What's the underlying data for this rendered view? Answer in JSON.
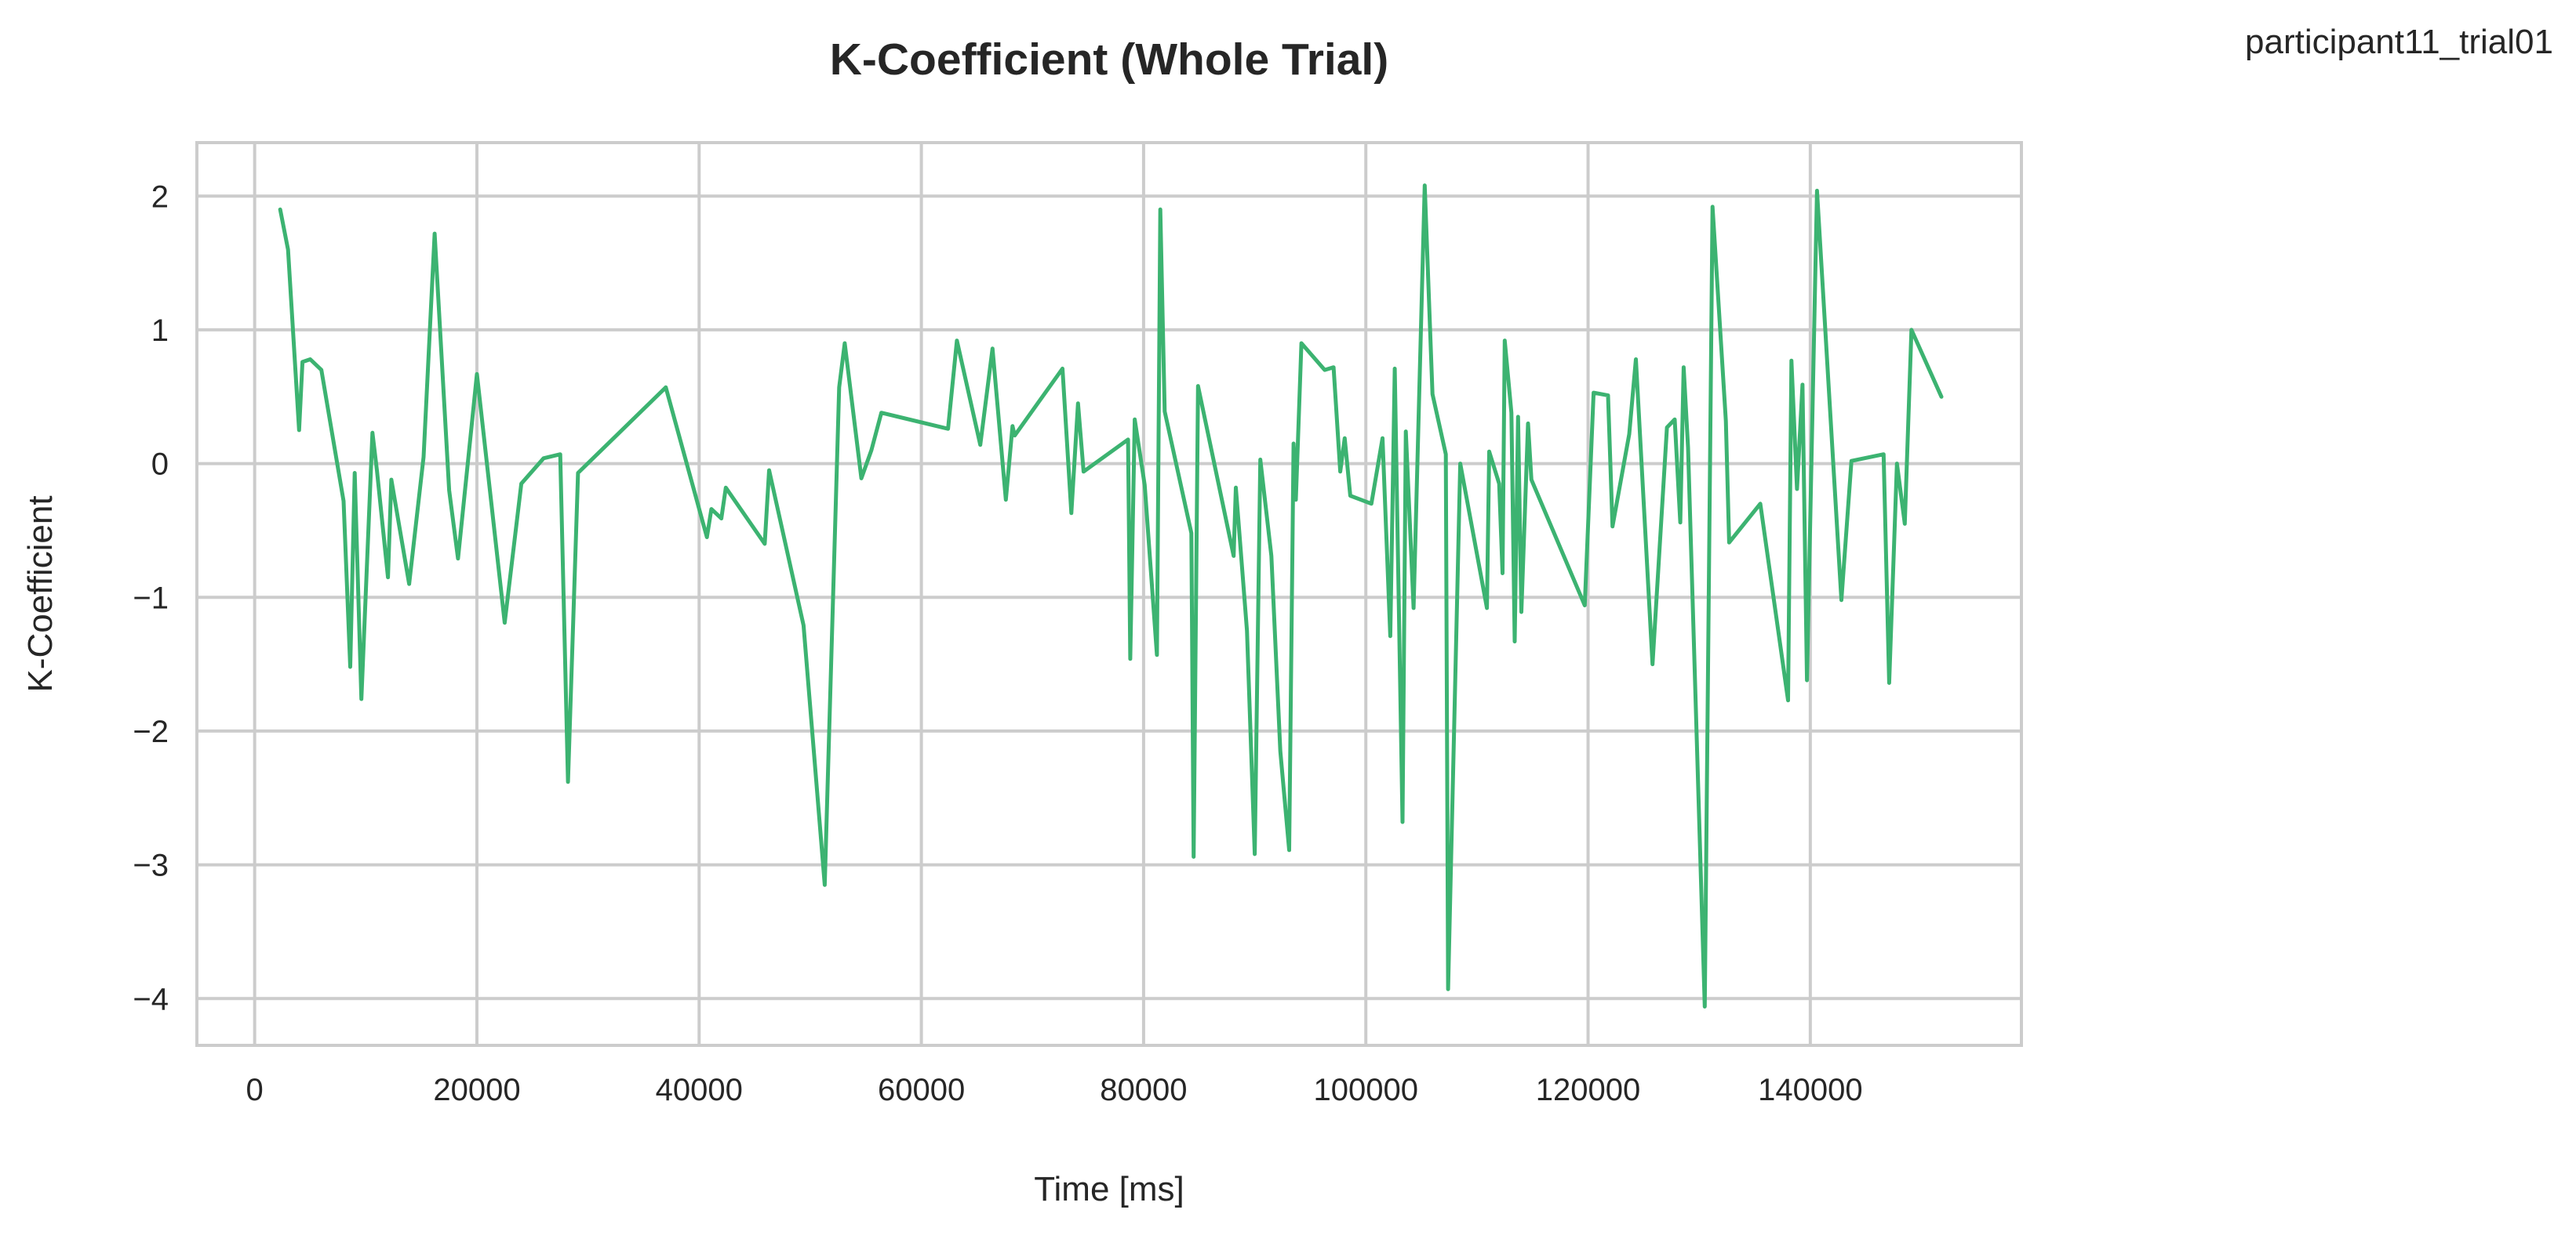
{
  "corner_label": "participant11_trial01",
  "colors": {
    "series": "#3cb371",
    "grid": "#cccccc",
    "text": "#262626"
  },
  "chart_data": {
    "type": "line",
    "title": "K-Coefficient (Whole Trial)",
    "xlabel": "Time [ms]",
    "ylabel": "K-Coefficient",
    "xlim": [
      -5200,
      159000
    ],
    "ylim": [
      -4.35,
      2.4
    ],
    "grid": true,
    "xticks": [
      0,
      20000,
      40000,
      60000,
      80000,
      100000,
      120000,
      140000
    ],
    "xtick_labels": [
      "0",
      "20000",
      "40000",
      "60000",
      "80000",
      "100000",
      "120000",
      "140000"
    ],
    "yticks": [
      2,
      1,
      0,
      -1,
      -2,
      -3,
      -4
    ],
    "ytick_labels": [
      "2",
      "1",
      "0",
      "−1",
      "−2",
      "−3",
      "−4"
    ],
    "series": [
      {
        "x": [
          2300,
          3000,
          4000,
          4300,
          5000,
          6000,
          8000,
          8600,
          9000,
          9600,
          10600,
          11000,
          12000,
          12300,
          13900,
          15200,
          16200,
          17500,
          18300,
          20000,
          22500,
          24000,
          26000,
          27500,
          28200,
          29100,
          37000,
          40700,
          41100,
          42000,
          42400,
          45900,
          46300,
          49400,
          51300,
          52600,
          53100,
          54600,
          55500,
          56400,
          62400,
          63200,
          65300,
          66400,
          67600,
          68200,
          68400,
          72700,
          73500,
          74100,
          74600,
          78600,
          78800,
          79200,
          80100,
          81200,
          81500,
          81900,
          84300,
          84500,
          84900,
          88100,
          88300,
          89300,
          90000,
          90500,
          91500,
          92300,
          93100,
          93500,
          93700,
          94200,
          96300,
          97100,
          97700,
          98100,
          98600,
          100500,
          101500,
          102200,
          102600,
          103300,
          103600,
          104300,
          105300,
          106000,
          107200,
          107400,
          108500,
          110900,
          111100,
          112000,
          112300,
          112500,
          113100,
          113400,
          113700,
          114000,
          114600,
          114900,
          119700,
          120500,
          121800,
          122200,
          123700,
          124300,
          125800,
          127100,
          127800,
          128300,
          128600,
          129000,
          130500,
          131200,
          132400,
          132700,
          135500,
          138000,
          138300,
          138800,
          139300,
          139700,
          140600,
          142800,
          143700,
          146600,
          147100,
          147800,
          148500,
          149100,
          151800
        ],
        "y": [
          1.9,
          1.6,
          0.25,
          0.76,
          0.78,
          0.7,
          -0.28,
          -1.52,
          -0.07,
          -1.76,
          0.23,
          -0.05,
          -0.85,
          -0.12,
          -0.9,
          0.05,
          1.72,
          -0.2,
          -0.71,
          0.67,
          -1.19,
          -0.15,
          0.04,
          0.07,
          -2.38,
          -0.07,
          0.57,
          -0.55,
          -0.34,
          -0.41,
          -0.18,
          -0.6,
          -0.05,
          -1.21,
          -3.15,
          0.57,
          0.9,
          -0.11,
          0.1,
          0.38,
          0.26,
          0.92,
          0.14,
          0.86,
          -0.27,
          0.28,
          0.21,
          0.71,
          -0.37,
          0.45,
          -0.06,
          0.18,
          -1.46,
          0.33,
          -0.16,
          -1.43,
          1.9,
          0.39,
          -0.52,
          -2.94,
          0.58,
          -0.69,
          -0.18,
          -1.25,
          -2.92,
          0.03,
          -0.69,
          -2.15,
          -2.89,
          0.15,
          -0.27,
          0.9,
          0.7,
          0.72,
          -0.06,
          0.19,
          -0.24,
          -0.3,
          0.19,
          -1.29,
          0.71,
          -2.68,
          0.24,
          -1.08,
          2.08,
          0.52,
          0.07,
          -3.93,
          0.0,
          -1.08,
          0.09,
          -0.15,
          -0.82,
          0.92,
          0.38,
          -1.33,
          0.35,
          -1.11,
          0.3,
          -0.12,
          -1.06,
          0.53,
          0.51,
          -0.47,
          0.22,
          0.78,
          -1.5,
          0.27,
          0.33,
          -0.44,
          0.72,
          0.12,
          -4.06,
          1.92,
          0.32,
          -0.59,
          -0.3,
          -1.77,
          0.77,
          -0.19,
          0.59,
          -1.62,
          2.04,
          -1.02,
          0.02,
          0.07,
          -1.64,
          0.0,
          -0.45,
          1.0,
          0.5
        ]
      }
    ]
  }
}
